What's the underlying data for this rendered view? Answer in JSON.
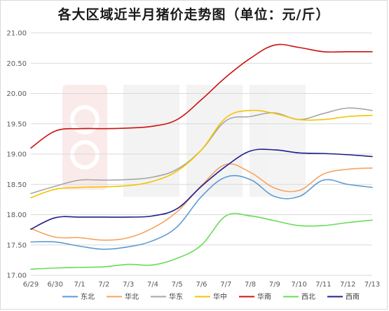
{
  "chart_data": {
    "type": "line",
    "title": "各大区域近半月猪价走势图（单位：元/斤）",
    "xlabel": "",
    "ylabel": "",
    "ylim": [
      17.0,
      21.0
    ],
    "yticks": [
      "17.00",
      "17.50",
      "18.00",
      "18.50",
      "19.00",
      "19.50",
      "20.00",
      "20.50",
      "21.00"
    ],
    "categories": [
      "6/29",
      "6/30",
      "7/1",
      "7/2",
      "7/3",
      "7/4",
      "7/5",
      "7/6",
      "7/7",
      "7/8",
      "7/9",
      "7/10",
      "7/11",
      "7/12",
      "7/13"
    ],
    "grid": "horizontal",
    "legend_position": "bottom",
    "series": [
      {
        "name": "东北",
        "color": "#5b9bd5",
        "values": [
          17.55,
          17.55,
          17.48,
          17.43,
          17.47,
          17.57,
          17.8,
          18.3,
          18.62,
          18.58,
          18.3,
          18.3,
          18.57,
          18.5,
          18.45
        ]
      },
      {
        "name": "华北",
        "color": "#f4a460",
        "values": [
          17.77,
          17.63,
          17.62,
          17.58,
          17.62,
          17.78,
          18.05,
          18.48,
          18.83,
          18.7,
          18.44,
          18.4,
          18.67,
          18.75,
          18.77
        ]
      },
      {
        "name": "华东",
        "color": "#a6a6a6",
        "values": [
          18.35,
          18.47,
          18.57,
          18.57,
          18.58,
          18.62,
          18.75,
          19.07,
          19.55,
          19.62,
          19.68,
          19.57,
          19.67,
          19.76,
          19.72
        ]
      },
      {
        "name": "华中",
        "color": "#f5c400",
        "values": [
          18.28,
          18.42,
          18.45,
          18.46,
          18.48,
          18.55,
          18.72,
          19.07,
          19.6,
          19.72,
          19.67,
          19.57,
          19.57,
          19.62,
          19.64
        ]
      },
      {
        "name": "华南",
        "color": "#cc1111",
        "values": [
          19.1,
          19.38,
          19.42,
          19.42,
          19.43,
          19.46,
          19.57,
          19.9,
          20.27,
          20.58,
          20.8,
          20.76,
          20.69,
          20.69,
          20.69
        ]
      },
      {
        "name": "西北",
        "color": "#66dd55",
        "values": [
          17.1,
          17.12,
          17.13,
          17.14,
          17.18,
          17.17,
          17.28,
          17.5,
          17.98,
          17.98,
          17.9,
          17.82,
          17.82,
          17.87,
          17.91
        ]
      },
      {
        "name": "西南",
        "color": "#1f1f8f",
        "values": [
          17.76,
          17.95,
          17.96,
          17.96,
          17.96,
          17.98,
          18.1,
          18.47,
          18.8,
          19.05,
          19.07,
          19.02,
          19.01,
          18.99,
          18.96
        ]
      }
    ]
  }
}
